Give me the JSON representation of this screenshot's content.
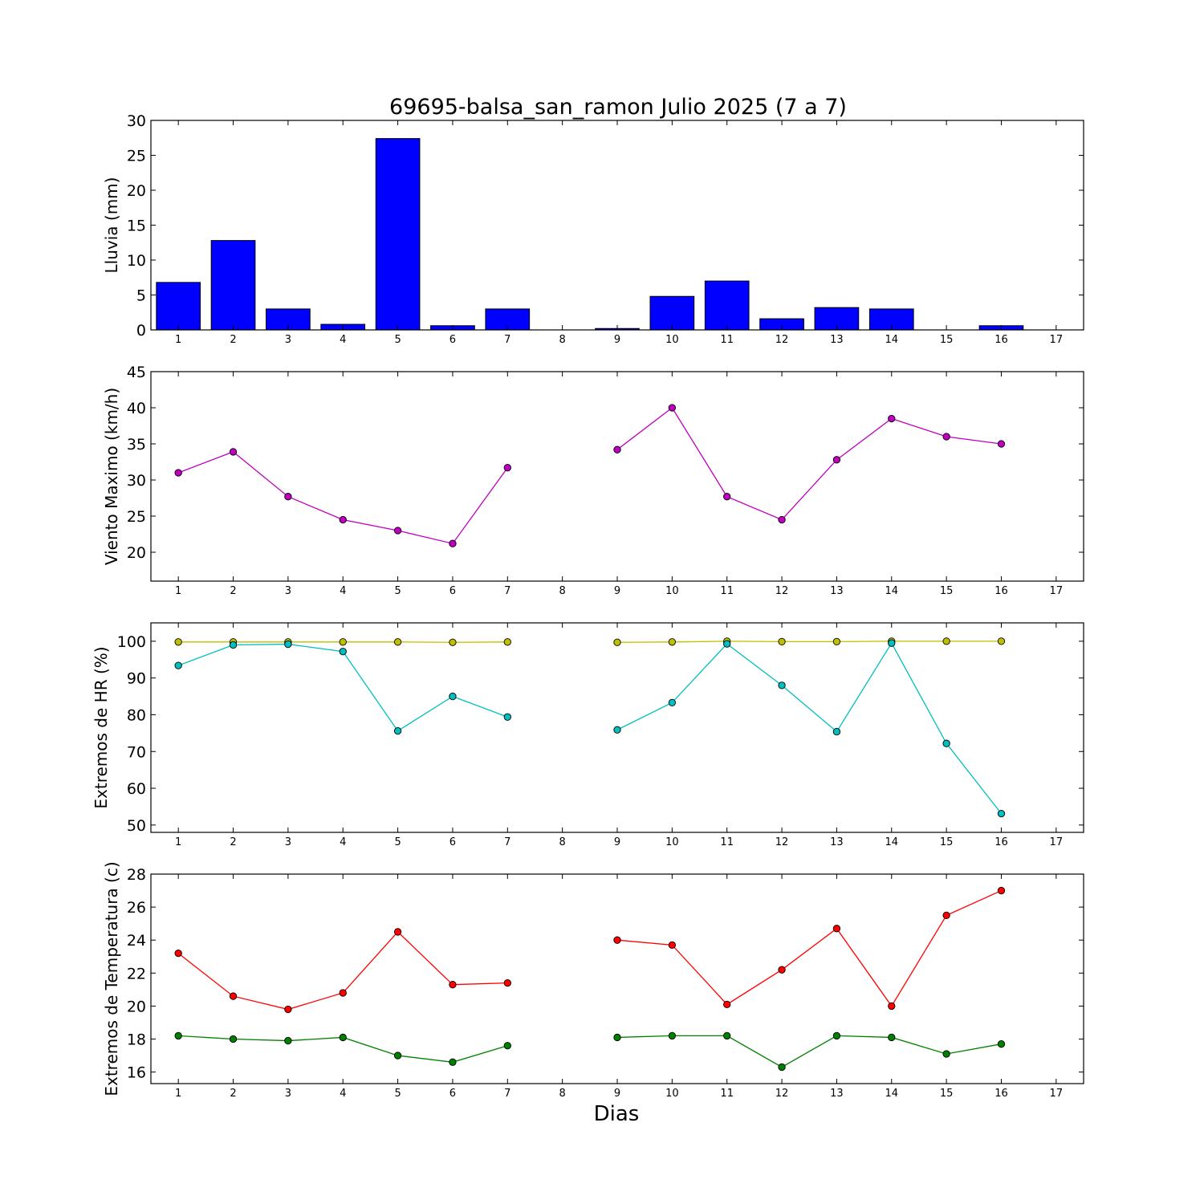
{
  "chart_data": {
    "title": "69695-balsa_san_ramon Julio 2025  (7 a 7)",
    "xlabel": "Dias",
    "x_ticks": [
      1,
      2,
      3,
      4,
      5,
      6,
      7,
      8,
      9,
      10,
      11,
      12,
      13,
      14,
      15,
      16,
      17
    ],
    "xlim": [
      0.5,
      17.5
    ],
    "panels": [
      {
        "type": "bar",
        "ylabel": "Lluvia (mm)",
        "ylim": [
          0,
          30
        ],
        "y_ticks": [
          0,
          5,
          10,
          15,
          20,
          25,
          30
        ],
        "color": "#0000ff",
        "x": [
          1,
          2,
          3,
          4,
          5,
          6,
          7,
          8,
          9,
          10,
          11,
          12,
          13,
          14,
          15,
          16
        ],
        "values": [
          6.8,
          12.8,
          3.0,
          0.8,
          27.4,
          0.6,
          3.0,
          0,
          0.2,
          4.8,
          7.0,
          1.6,
          3.2,
          3.0,
          0,
          0.6
        ]
      },
      {
        "type": "line",
        "ylabel": "Viento Maximo (km/h)",
        "ylim": [
          16,
          45
        ],
        "y_ticks": [
          20,
          25,
          30,
          35,
          40,
          45
        ],
        "series": [
          {
            "color": "#bf00bf",
            "x": [
              1,
              2,
              3,
              4,
              5,
              6,
              7,
              8,
              9,
              10,
              11,
              12,
              13,
              14,
              15,
              16
            ],
            "values": [
              31.0,
              33.9,
              27.7,
              24.5,
              23.0,
              21.2,
              31.7,
              null,
              34.2,
              40.0,
              27.7,
              24.5,
              32.8,
              38.5,
              36.0,
              35.0
            ]
          }
        ]
      },
      {
        "type": "line",
        "ylabel": "Extremos de HR (%)",
        "ylim": [
          48,
          105
        ],
        "y_ticks": [
          50,
          60,
          70,
          80,
          90,
          100
        ],
        "series": [
          {
            "color": "#bfbf00",
            "x": [
              1,
              2,
              3,
              4,
              5,
              6,
              7,
              8,
              9,
              10,
              11,
              12,
              13,
              14,
              15,
              16
            ],
            "values": [
              99.8,
              99.8,
              99.8,
              99.8,
              99.8,
              99.7,
              99.8,
              null,
              99.7,
              99.8,
              100,
              99.9,
              99.9,
              100,
              100,
              100
            ]
          },
          {
            "color": "#00bfbf",
            "x": [
              1,
              2,
              3,
              4,
              5,
              6,
              7,
              8,
              9,
              10,
              11,
              12,
              13,
              14,
              15,
              16
            ],
            "values": [
              93.4,
              99.0,
              99.2,
              97.2,
              75.6,
              85.0,
              79.4,
              null,
              75.9,
              83.3,
              99.3,
              88.0,
              75.4,
              99.5,
              72.2,
              53.1
            ]
          }
        ]
      },
      {
        "type": "line",
        "ylabel": "Extremos de Temperatura (c)",
        "ylim": [
          15.3,
          28
        ],
        "y_ticks": [
          16,
          18,
          20,
          22,
          24,
          26,
          28
        ],
        "series": [
          {
            "color": "#ff0000",
            "x": [
              1,
              2,
              3,
              4,
              5,
              6,
              7,
              8,
              9,
              10,
              11,
              12,
              13,
              14,
              15,
              16
            ],
            "values": [
              23.2,
              20.6,
              19.8,
              20.8,
              24.5,
              21.3,
              21.4,
              null,
              24.0,
              23.7,
              20.1,
              22.2,
              24.7,
              20.0,
              25.5,
              27.0
            ]
          },
          {
            "color": "#008000",
            "x": [
              1,
              2,
              3,
              4,
              5,
              6,
              7,
              8,
              9,
              10,
              11,
              12,
              13,
              14,
              15,
              16
            ],
            "values": [
              18.2,
              18.0,
              17.9,
              18.1,
              17.0,
              16.6,
              17.6,
              null,
              18.1,
              18.2,
              18.2,
              16.3,
              18.2,
              18.1,
              17.1,
              17.7
            ]
          }
        ]
      }
    ]
  }
}
